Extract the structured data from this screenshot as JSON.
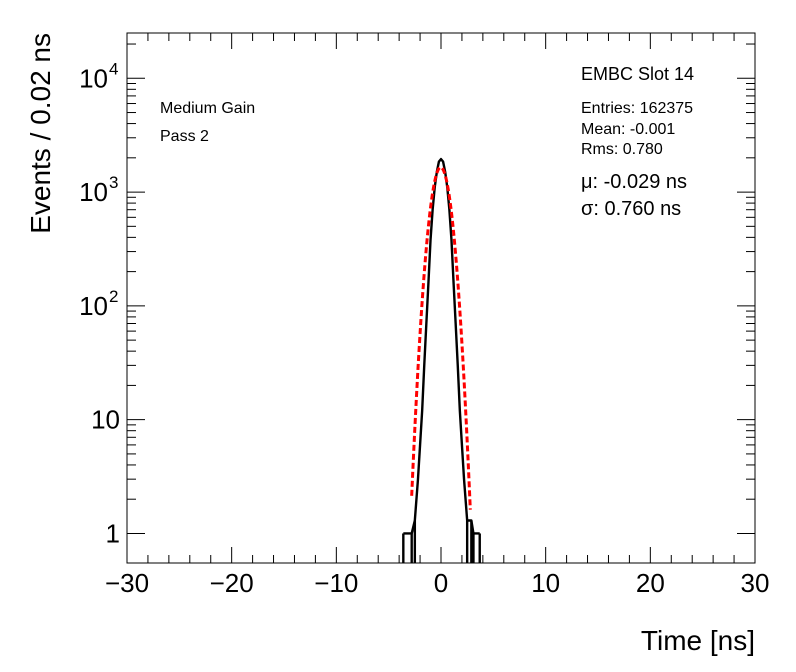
{
  "chart_data": {
    "type": "line",
    "xlabel": "Time [ns]",
    "ylabel": "Events / 0.02 ns",
    "xlim": [
      -30,
      30
    ],
    "ylim": [
      0.55,
      25000
    ],
    "yscale": "log",
    "grid": false,
    "x_ticks": [
      {
        "value": -30,
        "label": "−30"
      },
      {
        "value": -20,
        "label": "−20"
      },
      {
        "value": -10,
        "label": "−10"
      },
      {
        "value": 0,
        "label": "0"
      },
      {
        "value": 10,
        "label": "10"
      },
      {
        "value": 20,
        "label": "20"
      },
      {
        "value": 30,
        "label": "30"
      }
    ],
    "y_ticks": [
      {
        "value": 1,
        "base": "1",
        "exp": ""
      },
      {
        "value": 10,
        "base": "10",
        "exp": ""
      },
      {
        "value": 100,
        "base": "10",
        "exp": "2"
      },
      {
        "value": 1000,
        "base": "10",
        "exp": "3"
      },
      {
        "value": 10000,
        "base": "10",
        "exp": "4"
      }
    ],
    "annotations_left": [
      "Medium Gain",
      "Pass 2"
    ],
    "stats_title": "EMBC Slot 14",
    "stats": [
      "Entries: 162375",
      "Mean: -0.001",
      "Rms: 0.780"
    ],
    "fit_params": [
      "μ: -0.029 ns",
      "σ: 0.760 ns"
    ],
    "series": [
      {
        "style": "histogram",
        "color": "#000000",
        "x": [
          -3.6,
          -2.8,
          -2.5,
          -2.2,
          -2.0,
          -1.8,
          -1.6,
          -1.4,
          -1.2,
          -1.0,
          -0.8,
          -0.6,
          -0.4,
          -0.2,
          0.0,
          0.2,
          0.4,
          0.6,
          0.8,
          1.0,
          1.2,
          1.4,
          1.6,
          1.8,
          2.0,
          2.2,
          2.5,
          2.9,
          3.1,
          3.7
        ],
        "y": [
          1,
          1,
          1.3,
          3,
          6,
          12,
          30,
          70,
          160,
          380,
          700,
          1100,
          1500,
          1850,
          1950,
          1850,
          1500,
          1100,
          700,
          380,
          160,
          70,
          30,
          12,
          6,
          3,
          1.3,
          1.3,
          1,
          1
        ]
      },
      {
        "style": "gaussian-fit",
        "color": "#ff0000",
        "mu": -0.029,
        "sigma": 0.76,
        "amplitude": 1650,
        "x_range": [
          -2.8,
          2.8
        ]
      }
    ]
  }
}
